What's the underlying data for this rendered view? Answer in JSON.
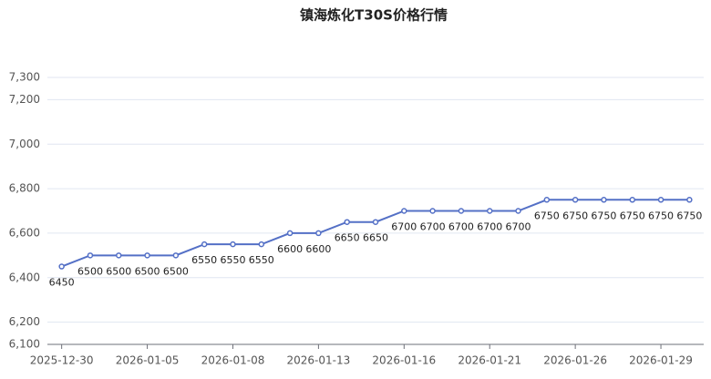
{
  "chart_data": {
    "type": "line",
    "title": "镇海炼化T30S价格行情",
    "categories": [
      "2025-12-30",
      null,
      null,
      "2026-01-05",
      null,
      null,
      "2026-01-08",
      null,
      null,
      "2026-01-13",
      null,
      null,
      "2026-01-16",
      null,
      null,
      "2026-01-21",
      null,
      null,
      "2026-01-26",
      null,
      null,
      "2026-01-29",
      null
    ],
    "series": [
      {
        "name": "T30S",
        "color": "#5470c6",
        "values": [
          6450,
          6500,
          6500,
          6500,
          6500,
          6550,
          6550,
          6550,
          6600,
          6600,
          6650,
          6650,
          6700,
          6700,
          6700,
          6700,
          6700,
          6750,
          6750,
          6750,
          6750,
          6750,
          6750
        ]
      }
    ],
    "ylim": [
      6100,
      7300
    ],
    "yticks": [
      {
        "value": 6100,
        "label": "6,100"
      },
      {
        "value": 6200,
        "label": "6,200"
      },
      {
        "value": 6400,
        "label": "6,400"
      },
      {
        "value": 6600,
        "label": "6,600"
      },
      {
        "value": 6800,
        "label": "6,800"
      },
      {
        "value": 7000,
        "label": "7,000"
      },
      {
        "value": 7200,
        "label": "7,200"
      },
      {
        "value": 7300,
        "label": "7,300"
      }
    ],
    "grid": true
  }
}
